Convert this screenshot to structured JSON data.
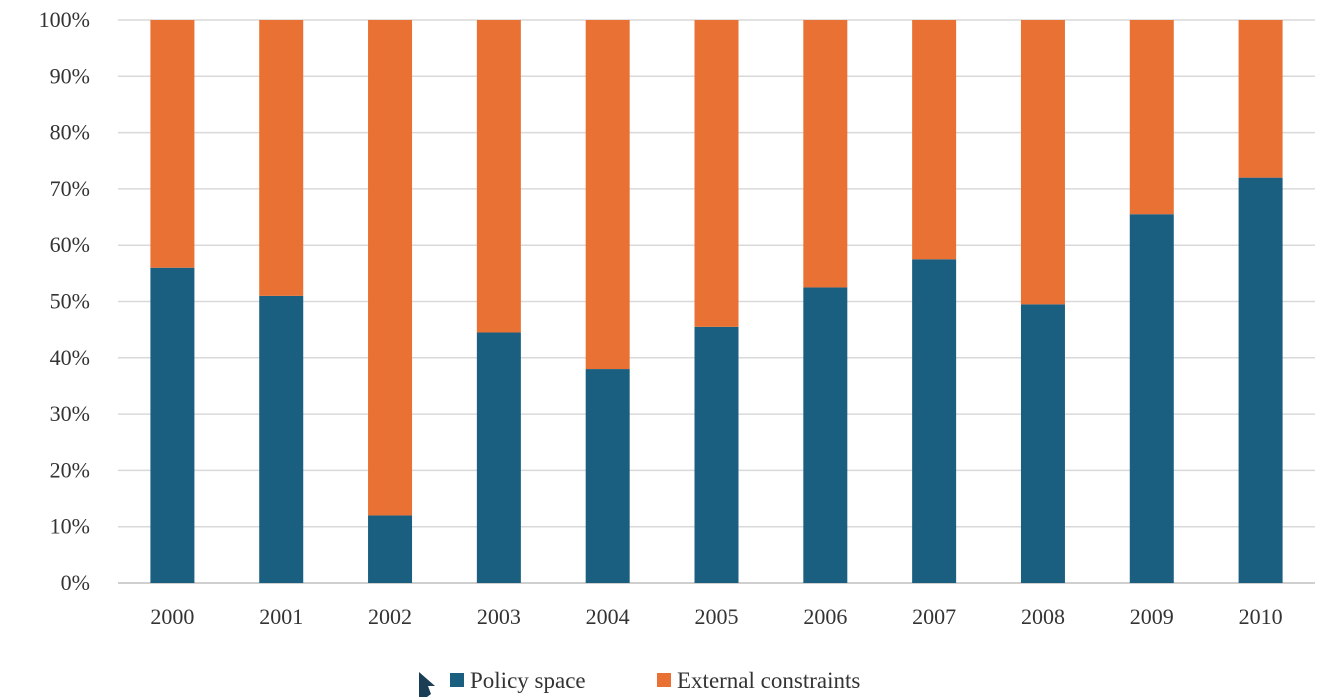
{
  "chart_data": {
    "type": "bar",
    "stacked": true,
    "normalized_percent": true,
    "categories": [
      "2000",
      "2001",
      "2002",
      "2003",
      "2004",
      "2005",
      "2006",
      "2007",
      "2008",
      "2009",
      "2010"
    ],
    "series": [
      {
        "name": "Policy space",
        "color": "#1a5e80",
        "values": [
          56,
          51,
          12,
          44.5,
          38,
          45.5,
          52.5,
          57.5,
          49.5,
          65.5,
          72
        ]
      },
      {
        "name": "External constraints",
        "color": "#e97133",
        "values": [
          44,
          49,
          88,
          55.5,
          62,
          54.5,
          47.5,
          42.5,
          50.5,
          34.5,
          28
        ]
      }
    ],
    "y_ticks": [
      "0%",
      "10%",
      "20%",
      "30%",
      "40%",
      "50%",
      "60%",
      "70%",
      "80%",
      "90%",
      "100%"
    ],
    "ylim": [
      0,
      100
    ],
    "grid": true,
    "legend_position": "bottom-center",
    "title": "",
    "xlabel": "",
    "ylabel": ""
  }
}
